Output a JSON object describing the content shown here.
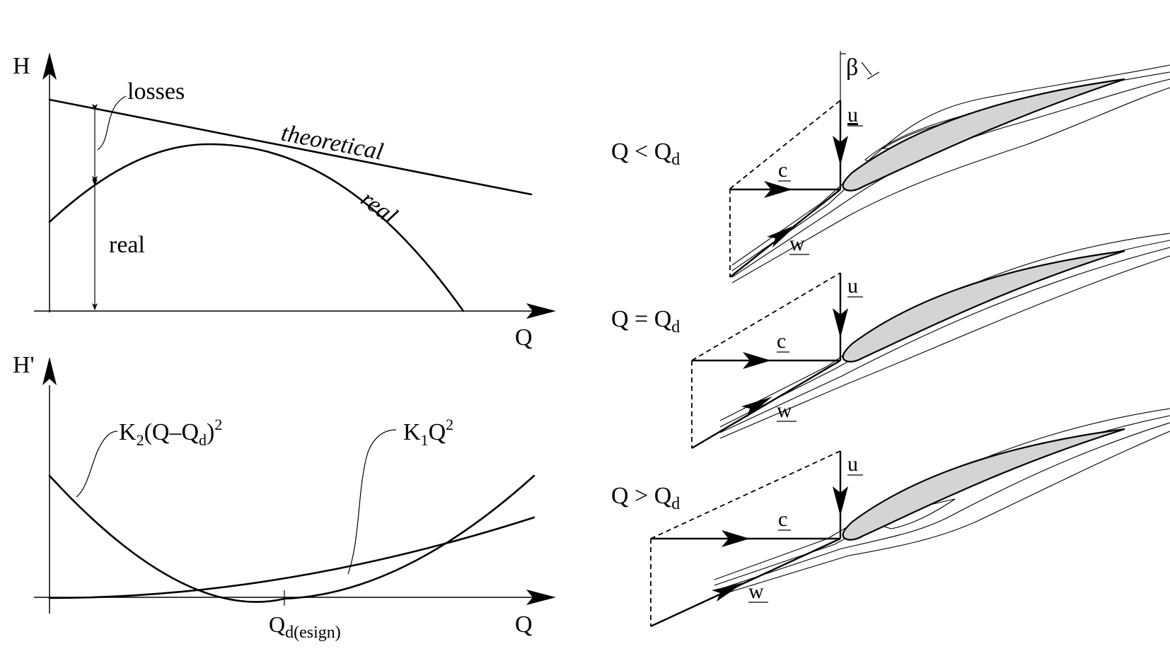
{
  "top_chart": {
    "y_axis_label": "H",
    "x_axis_label": "Q",
    "losses_label": "losses",
    "real_span_label": "real",
    "theoretical_curve_label": "theoretical",
    "real_curve_label": "real"
  },
  "bottom_chart": {
    "y_axis_label": "H'",
    "x_axis_label": "Q",
    "k2_label": {
      "base": "K",
      "sub1": "2",
      "mid": "(Q–Q",
      "sub2": "d",
      "close": ")",
      "sup": "2"
    },
    "k1_label": {
      "base": "K",
      "sub1": "1",
      "mid": "Q",
      "sup": "2"
    },
    "design_tick": {
      "base": "Q",
      "sub": "d(esign)"
    }
  },
  "cascades": [
    {
      "condition": {
        "base": "Q < Q",
        "sub": "d"
      },
      "u": "u",
      "c": "c",
      "w": "w",
      "beta": "β"
    },
    {
      "condition": {
        "base": "Q = Q",
        "sub": "d"
      },
      "u": "u",
      "c": "c",
      "w": "w"
    },
    {
      "condition": {
        "base": "Q > Q",
        "sub": "d"
      },
      "u": "u",
      "c": "c",
      "w": "w"
    }
  ]
}
